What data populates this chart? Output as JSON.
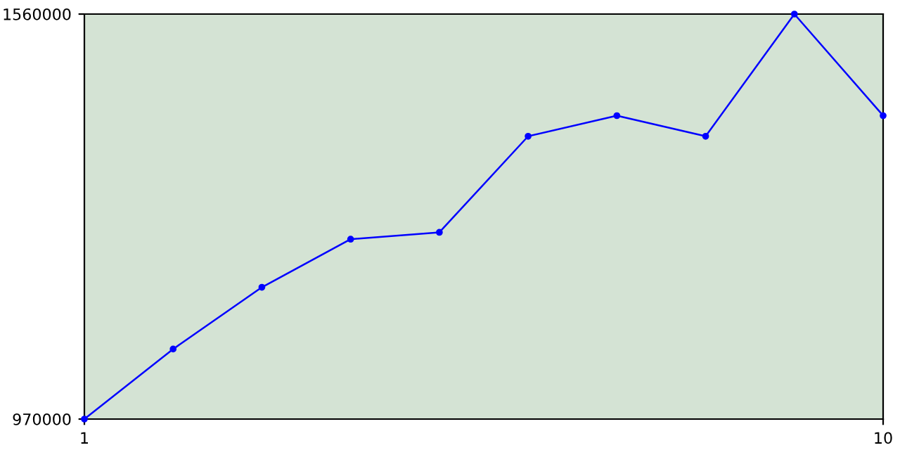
{
  "chart_data": {
    "type": "line",
    "x": [
      1,
      2,
      3,
      4,
      5,
      6,
      7,
      8,
      9,
      10
    ],
    "series": [
      {
        "color": "#0000ff",
        "values": [
          970000,
          1072000,
          1162000,
          1232000,
          1242000,
          1382000,
          1412000,
          1382000,
          1560000,
          1412000
        ]
      }
    ],
    "xlim": [
      1,
      10
    ],
    "xticks": [
      1,
      10
    ],
    "ylim": [
      970000,
      1560000
    ],
    "yticks": [
      970000,
      1560000
    ],
    "grid": false,
    "legend": false,
    "marker": "circle",
    "line_style": "solid"
  }
}
